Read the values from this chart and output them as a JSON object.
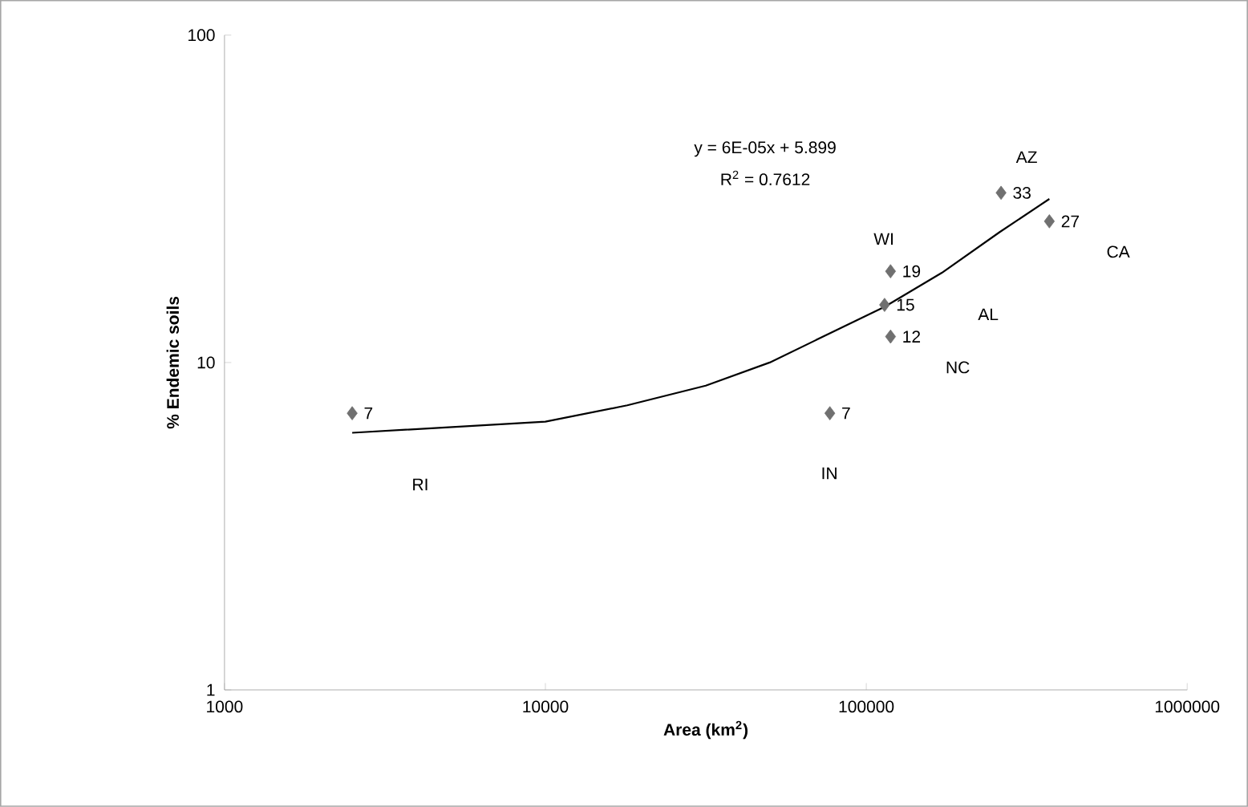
{
  "chart_data": {
    "type": "scatter",
    "xlabel": "Area (km$^{2}$)",
    "ylabel": "% Endemic soils",
    "log": "xy",
    "xlim": [
      1000,
      1000000
    ],
    "ylim": [
      1,
      100
    ],
    "xticks": [
      1000,
      10000,
      100000,
      1000000
    ],
    "yticks": [
      1,
      10,
      100
    ],
    "grid": false,
    "marker": "diamond",
    "series": [
      {
        "color": "#707070",
        "x": [
          2500,
          77000,
          119000,
          114000,
          119000,
          263000,
          372000
        ],
        "values": [
          7,
          7,
          12,
          15,
          19,
          33,
          27
        ],
        "value_labels": [
          "7",
          "7",
          "12",
          "15",
          "19",
          "33",
          "27"
        ]
      },
      {
        "type": "line",
        "color": "#000000",
        "marker": "none",
        "x": [
          2500,
          10000,
          18000,
          31600,
          50000,
          114000,
          172000,
          260000,
          372000
        ],
        "values": [
          6.1,
          6.6,
          7.4,
          8.5,
          10,
          14.8,
          18.8,
          25,
          31.6
        ]
      }
    ],
    "annotations": [
      "y = 6E-05x + 5.899",
      "R$^{2}$ = 0.7612",
      "RI",
      "IN",
      "NC",
      "AL",
      "WI",
      "AZ",
      "CA"
    ]
  }
}
